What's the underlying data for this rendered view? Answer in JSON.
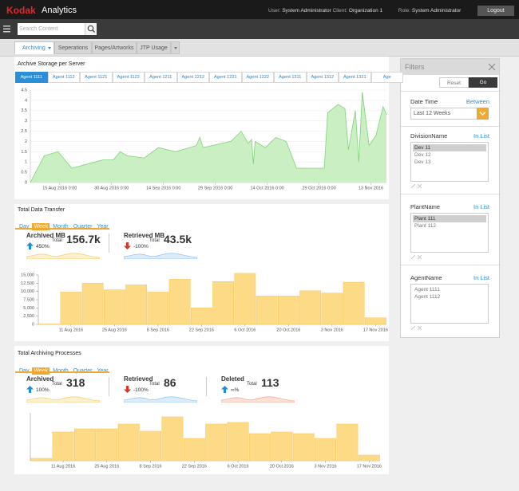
{
  "header": {
    "brand": "Kodak",
    "product": "Analytics",
    "user_label": "User:",
    "user": "System Administrator",
    "client_label": "Client:",
    "client": "Organization 1",
    "role_label": "Role:",
    "role": "System Administrator",
    "logout": "Logout"
  },
  "search": {
    "placeholder": "Search Content"
  },
  "tabs": [
    "Archiving",
    "Seperations",
    "Pages/Artworks",
    "JTP Usage"
  ],
  "active_tab": 0,
  "storage": {
    "title": "Archive Storage per Server",
    "agents": [
      "Agent 1111",
      "Agent 1112",
      "Agent 1121",
      "Agent 1122",
      "Agent 1211",
      "Agent 1212",
      "Agent 1221",
      "Agent 1222",
      "Agent 1311",
      "Agent 1312",
      "Agent 1321",
      "Age"
    ],
    "active_agent": 0,
    "chart": {
      "type": "area",
      "color": "#7fd37a",
      "fill": "#c9efc2",
      "x": [
        0,
        4,
        8,
        12,
        21,
        24,
        26,
        28,
        33,
        37,
        42,
        48,
        49,
        50,
        58,
        61,
        63,
        64,
        64.5,
        65,
        68,
        71,
        74,
        77,
        85,
        86,
        89,
        91,
        92,
        94,
        95,
        96,
        98,
        100,
        102,
        103
      ],
      "values": [
        0,
        1.3,
        1.5,
        0.7,
        1.1,
        1.1,
        1.5,
        1.3,
        1.2,
        1.7,
        1.5,
        1.8,
        2.2,
        1.7,
        2.0,
        2.5,
        1.9,
        2.1,
        0.9,
        2.0,
        1.7,
        2.2,
        2.0,
        0.7,
        0.7,
        3.4,
        3.8,
        3.6,
        1.6,
        3.5,
        1.0,
        4.4,
        1.8,
        2.3,
        3.7,
        3.3
      ],
      "xlim": [
        0,
        103
      ],
      "ylim": [
        0,
        4.5
      ],
      "yticks": [
        0,
        0.5,
        1,
        1.5,
        2,
        2.5,
        3,
        3.5,
        4,
        4.5
      ],
      "xticks": [
        {
          "value": 8.5,
          "label": "15 Aug 2016 0:00"
        },
        {
          "value": 23.5,
          "label": "30 Aug 2016 0:00"
        },
        {
          "value": 38.5,
          "label": "14 Sep 2016 0:00"
        },
        {
          "value": 53.5,
          "label": "29 Sep 2016 0:00"
        },
        {
          "value": 68.5,
          "label": "14 Oct 2016 0:00"
        },
        {
          "value": 83.5,
          "label": "29 Oct 2016 0:00"
        },
        {
          "value": 98.5,
          "label": "13 Nov 2016"
        }
      ],
      "grid": true
    }
  },
  "transfer": {
    "title": "Total Data Transfer",
    "periods": [
      "Day",
      "Week",
      "Month",
      "Quarter",
      "Year"
    ],
    "active_period": 1,
    "kpis": [
      {
        "label": "Archived MB",
        "direction": "up",
        "change": "450%",
        "total_label": "Total",
        "total": "156.7k"
      },
      {
        "label": "Retrieved MB",
        "direction": "down",
        "change": "-100%",
        "total_label": "Total",
        "total": "43.5k"
      }
    ],
    "chart": {
      "type": "bar",
      "color": "#fddb86",
      "categories": [
        null,
        "11 Aug 2016",
        null,
        "25 Aug 2016",
        null,
        "8 Sep 2016",
        null,
        "22 Sep 2016",
        null,
        "6 Oct 2016",
        null,
        "20 Oct 2016",
        null,
        "3 Nov 2016",
        null,
        "17 Nov 2016"
      ],
      "values": [
        100,
        9800,
        12500,
        10500,
        12000,
        9800,
        13700,
        5000,
        13000,
        15500,
        8600,
        8600,
        10200,
        9500,
        12800,
        2000
      ],
      "ylim": [
        0,
        15000
      ],
      "yticks": [
        0,
        {
          "value": 2500,
          "label": "2,500"
        },
        {
          "value": 5000,
          "label": "5,000"
        },
        {
          "value": 7500,
          "label": "7,500"
        },
        {
          "value": 10000,
          "label": "10,000"
        },
        {
          "value": 12500,
          "label": "12,500"
        },
        {
          "value": 15000,
          "label": "15,000"
        }
      ]
    }
  },
  "processes": {
    "title": "Total Archiving Processes",
    "periods": [
      "Day",
      "Week",
      "Month",
      "Quarter",
      "Year"
    ],
    "active_period": 1,
    "kpis": [
      {
        "label": "Archived",
        "direction": "up",
        "change": "100%",
        "total_label": "Total",
        "total": "318"
      },
      {
        "label": "Retrieved",
        "direction": "down",
        "change": "-100%",
        "total_label": "Total",
        "total": "86"
      },
      {
        "label": "Deleted",
        "direction": "up",
        "change": "∞%",
        "total_label": "Total",
        "total": "113"
      }
    ],
    "chart": {
      "type": "bar",
      "color": "#fddb86",
      "categories": [
        null,
        "11 Aug 2016",
        null,
        "25 Aug 2016",
        null,
        "8 Sep 2016",
        null,
        "22 Sep 2016",
        null,
        "6 Oct 2016",
        null,
        "20 Oct 2016",
        null,
        "3 Nov 2016",
        null,
        "17 Nov 2016"
      ],
      "values": [
        3,
        36,
        40,
        40,
        46,
        37,
        55,
        28,
        46,
        48,
        34,
        36,
        34,
        28,
        46,
        7
      ],
      "ylim": [
        0,
        60
      ]
    }
  },
  "filters": {
    "title": "Filters",
    "reset": "Reset",
    "go": "Go",
    "date": {
      "label": "Date Time",
      "op": "Between",
      "value": "Last 12 Weeks"
    },
    "lists": [
      {
        "label": "DivisionName",
        "op": "In List",
        "items": [
          "Dev 11",
          "Dev 12",
          "Dev 13"
        ],
        "selected": 0
      },
      {
        "label": "PlantName",
        "op": "In List",
        "items": [
          "Plant 111",
          "Plant 112"
        ],
        "selected": 0
      },
      {
        "label": "AgentName",
        "op": "In List",
        "items": [
          "Agent 1111",
          "Agent 1112"
        ],
        "selected": -1
      }
    ]
  }
}
